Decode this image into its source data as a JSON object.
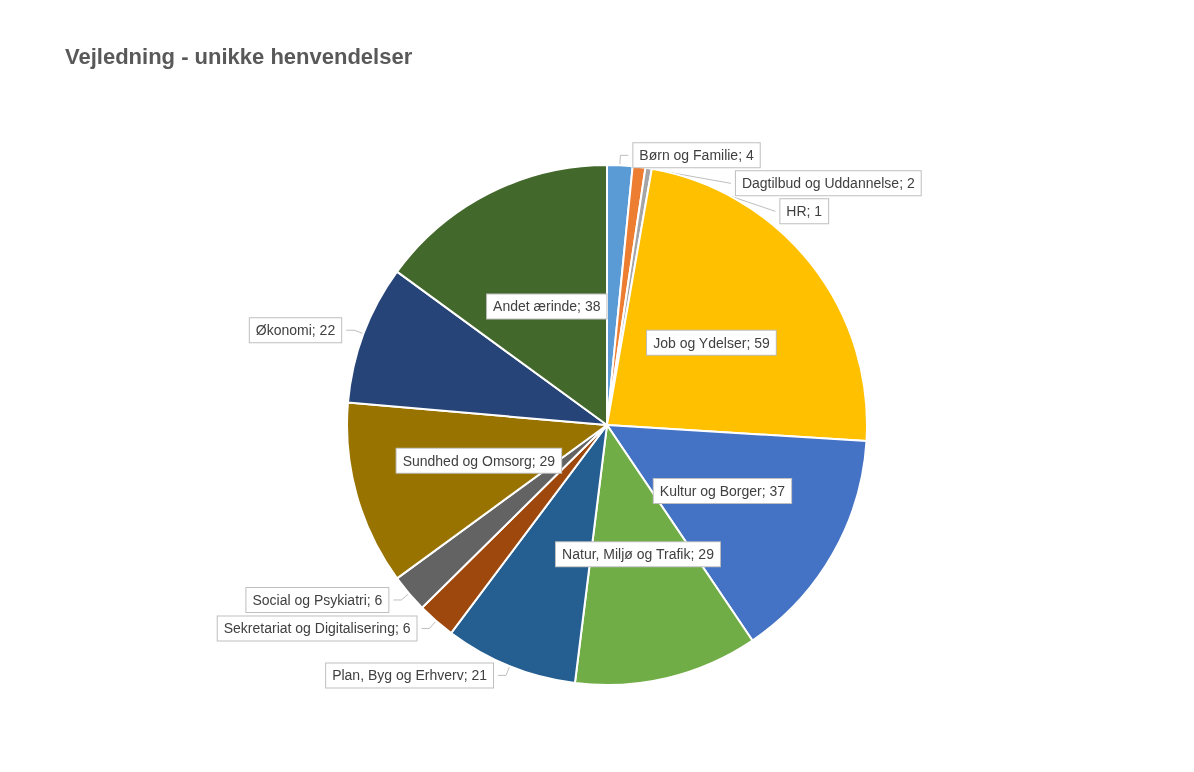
{
  "chart_data": {
    "type": "pie",
    "title": "Vejledning - unikke henvendelser",
    "categories": [
      "Børn og Familie",
      "Dagtilbud og Uddannelse",
      "HR",
      "Job og Ydelser",
      "Kultur og Borger",
      "Natur, Miljø og Trafik",
      "Plan, Byg og Erhverv",
      "Sekretariat og Digitalisering",
      "Social og Psykiatri",
      "Sundhed og Omsorg",
      "Økonomi",
      "Andet ærinde"
    ],
    "values": [
      4,
      2,
      1,
      59,
      37,
      29,
      21,
      6,
      6,
      29,
      22,
      38
    ],
    "colors": [
      "#5b9bd5",
      "#ed7d31",
      "#a5a5a5",
      "#ffc000",
      "#4472c4",
      "#70ad47",
      "#255e91",
      "#9e480e",
      "#636363",
      "#997300",
      "#264478",
      "#43682b"
    ],
    "value_labels": [
      "; 4",
      "; 2",
      "; 1",
      "; 59",
      "; 37",
      "; 29",
      "; 21",
      "; 6",
      "; 6",
      "; 29",
      "; 22",
      "; 38"
    ]
  }
}
